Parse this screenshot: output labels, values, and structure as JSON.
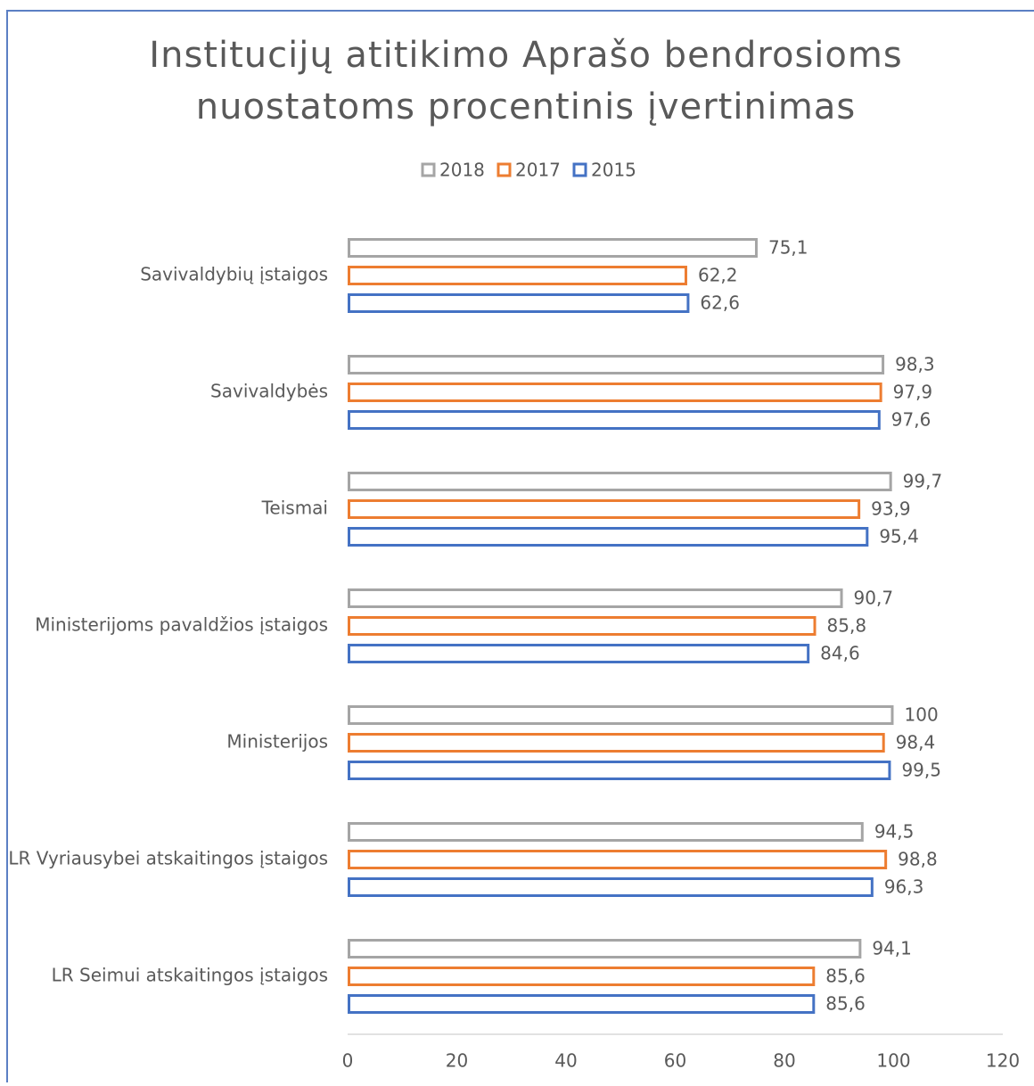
{
  "chart_data": {
    "type": "bar",
    "orientation": "horizontal",
    "title": [
      "Institucijų atitikimo Aprašo bendrosioms",
      "nuostatoms procentinis įvertinimas"
    ],
    "categories": [
      "Savivaldybių įstaigos",
      "Savivaldybės",
      "Teismai",
      "Ministerijoms pavaldžios įstaigos",
      "Ministerijos",
      "LR Vyriausybei atskaitingos įstaigos",
      "LR Seimui atskaitingos įstaigos"
    ],
    "series": [
      {
        "name": "2018",
        "color": "#a5a5a5",
        "values": [
          75.1,
          98.3,
          99.7,
          90.7,
          100,
          94.5,
          94.1
        ],
        "value_labels": [
          "75,1",
          "98,3",
          "99,7",
          "90,7",
          "100",
          "94,5",
          "94,1"
        ]
      },
      {
        "name": "2017",
        "color": "#ed7d31",
        "values": [
          62.2,
          97.9,
          93.9,
          85.8,
          98.4,
          98.8,
          85.6
        ],
        "value_labels": [
          "62,2",
          "97,9",
          "93,9",
          "85,8",
          "98,4",
          "98,8",
          "85,6"
        ]
      },
      {
        "name": "2015",
        "color": "#4472c4",
        "values": [
          62.6,
          97.6,
          95.4,
          84.6,
          99.5,
          96.3,
          85.6
        ],
        "value_labels": [
          "62,6",
          "97,6",
          "95,4",
          "84,6",
          "99,5",
          "96,3",
          "85,6"
        ]
      }
    ],
    "xlim": [
      0,
      120
    ],
    "xticks": [
      0,
      20,
      40,
      60,
      80,
      100,
      120
    ],
    "legend": "top"
  }
}
